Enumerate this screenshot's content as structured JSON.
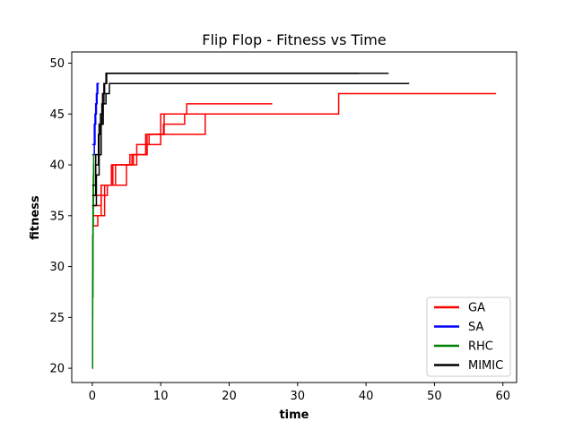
{
  "chart_data": {
    "type": "line",
    "title": "Flip Flop - Fitness vs Time",
    "xlabel": "time",
    "ylabel": "fitness",
    "xlim": [
      -3,
      62
    ],
    "ylim": [
      18.6,
      51.1
    ],
    "xticks": [
      0,
      10,
      20,
      30,
      40,
      50,
      60
    ],
    "yticks": [
      20,
      25,
      30,
      35,
      40,
      45,
      50
    ],
    "grid": false,
    "legend_position": "bottom-right",
    "series": [
      {
        "name": "GA",
        "color": "#ff0000",
        "runs": [
          [
            [
              0,
              34
            ],
            [
              0.8,
              34
            ],
            [
              0.8,
              35
            ],
            [
              1.3,
              35
            ],
            [
              1.3,
              38
            ],
            [
              5.0,
              38
            ],
            [
              5.0,
              40
            ],
            [
              5.5,
              40
            ],
            [
              5.5,
              41
            ],
            [
              7.8,
              41
            ],
            [
              7.8,
              43
            ],
            [
              10.5,
              43
            ],
            [
              10.5,
              45
            ],
            [
              13.8,
              45
            ],
            [
              13.8,
              46
            ],
            [
              26.3,
              46
            ]
          ],
          [
            [
              0,
              36
            ],
            [
              1.3,
              36
            ],
            [
              1.3,
              38
            ],
            [
              3.0,
              38
            ],
            [
              3.0,
              40
            ],
            [
              6.5,
              40
            ],
            [
              6.5,
              42
            ],
            [
              8.3,
              42
            ],
            [
              8.3,
              43
            ],
            [
              16.5,
              43
            ],
            [
              16.5,
              45
            ],
            [
              32.0,
              45
            ]
          ],
          [
            [
              0,
              37
            ],
            [
              2.2,
              37
            ],
            [
              2.2,
              38
            ],
            [
              3.4,
              38
            ],
            [
              3.4,
              40
            ],
            [
              5.8,
              40
            ],
            [
              5.8,
              41
            ],
            [
              8.0,
              41
            ],
            [
              8.0,
              43
            ],
            [
              10.4,
              43
            ],
            [
              10.4,
              44
            ],
            [
              13.5,
              44
            ],
            [
              13.5,
              45
            ],
            [
              36.0,
              45
            ],
            [
              36.0,
              47
            ],
            [
              59.0,
              47
            ]
          ],
          [
            [
              0,
              35
            ],
            [
              1.8,
              35
            ],
            [
              1.8,
              38
            ],
            [
              2.8,
              38
            ],
            [
              2.8,
              40
            ],
            [
              6.0,
              40
            ],
            [
              6.0,
              41
            ],
            [
              8.0,
              41
            ],
            [
              8.0,
              42
            ],
            [
              10.0,
              42
            ],
            [
              10.0,
              45
            ],
            [
              16.6,
              45
            ]
          ]
        ]
      },
      {
        "name": "SA",
        "color": "#0000ff",
        "runs": [
          [
            [
              0,
              41
            ],
            [
              0.3,
              41
            ],
            [
              0.3,
              44
            ],
            [
              0.5,
              44
            ],
            [
              0.5,
              46
            ],
            [
              0.7,
              46
            ],
            [
              0.7,
              48
            ],
            [
              1.0,
              48
            ]
          ],
          [
            [
              0,
              42
            ],
            [
              0.4,
              42
            ],
            [
              0.4,
              45
            ],
            [
              0.6,
              45
            ],
            [
              0.6,
              47
            ],
            [
              0.8,
              47
            ],
            [
              0.8,
              48
            ],
            [
              1.0,
              48
            ]
          ]
        ]
      },
      {
        "name": "RHC",
        "color": "#008000",
        "runs": [
          [
            [
              0,
              20
            ],
            [
              0.05,
              20
            ],
            [
              0.05,
              27
            ],
            [
              0.1,
              27
            ],
            [
              0.1,
              34
            ],
            [
              0.15,
              34
            ],
            [
              0.15,
              38
            ],
            [
              0.2,
              38
            ],
            [
              0.2,
              40
            ],
            [
              0.25,
              40
            ]
          ],
          [
            [
              0,
              21
            ],
            [
              0.05,
              21
            ],
            [
              0.05,
              29
            ],
            [
              0.1,
              29
            ],
            [
              0.1,
              36
            ],
            [
              0.15,
              36
            ],
            [
              0.15,
              39
            ],
            [
              0.2,
              39
            ],
            [
              0.2,
              41
            ],
            [
              0.25,
              41
            ]
          ],
          [
            [
              0,
              25
            ],
            [
              0.06,
              25
            ],
            [
              0.06,
              33
            ],
            [
              0.12,
              33
            ],
            [
              0.12,
              38
            ],
            [
              0.18,
              38
            ],
            [
              0.18,
              40
            ],
            [
              0.22,
              40
            ]
          ]
        ]
      },
      {
        "name": "MIMIC",
        "color": "#000000",
        "runs": [
          [
            [
              0,
              36
            ],
            [
              0.6,
              36
            ],
            [
              0.6,
              39
            ],
            [
              1.0,
              39
            ],
            [
              1.0,
              41
            ],
            [
              1.3,
              41
            ],
            [
              1.3,
              44
            ],
            [
              1.6,
              44
            ],
            [
              1.6,
              46
            ],
            [
              2.0,
              46
            ],
            [
              2.0,
              47
            ],
            [
              2.5,
              47
            ],
            [
              2.5,
              48
            ],
            [
              3.0,
              48
            ],
            [
              3.0,
              48
            ],
            [
              46.3,
              48
            ]
          ],
          [
            [
              0,
              38
            ],
            [
              0.5,
              38
            ],
            [
              0.5,
              40
            ],
            [
              0.9,
              40
            ],
            [
              0.9,
              43
            ],
            [
              1.2,
              43
            ],
            [
              1.2,
              45
            ],
            [
              1.5,
              45
            ],
            [
              1.5,
              47
            ],
            [
              1.8,
              47
            ],
            [
              1.8,
              48
            ],
            [
              2.0,
              48
            ],
            [
              2.0,
              49
            ],
            [
              39.0,
              49
            ]
          ],
          [
            [
              0,
              37
            ],
            [
              0.5,
              37
            ],
            [
              0.5,
              41
            ],
            [
              1.0,
              41
            ],
            [
              1.0,
              44
            ],
            [
              1.4,
              44
            ],
            [
              1.4,
              46
            ],
            [
              1.7,
              46
            ],
            [
              1.7,
              48
            ],
            [
              2.1,
              48
            ],
            [
              2.1,
              49
            ],
            [
              43.3,
              49
            ]
          ]
        ]
      }
    ]
  }
}
